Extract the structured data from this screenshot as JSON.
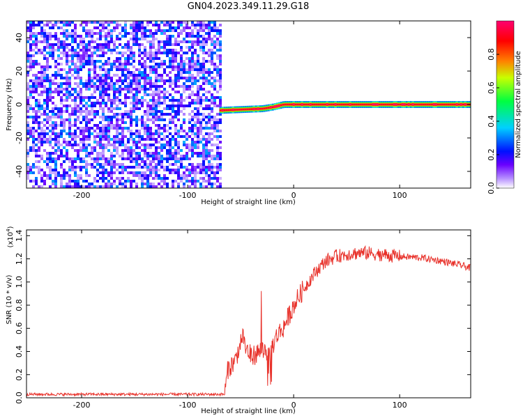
{
  "figure": {
    "title": "GN04.2023.349.11.29.G18"
  },
  "chart_data": [
    {
      "type": "heatmap",
      "title": "GN04.2023.349.11.29.G18",
      "xlabel": "Height of straight line (km)",
      "ylabel": "Frequency (Hz)",
      "xlim": [
        -252,
        167
      ],
      "ylim": [
        -50,
        50
      ],
      "xticks": [
        -200,
        -100,
        0,
        100
      ],
      "xtick_labels": [
        "-200",
        "-100",
        "0",
        "100"
      ],
      "yticks": [
        -40,
        -20,
        0,
        20,
        40
      ],
      "ytick_labels": [
        "-40",
        "-20",
        "0",
        "20",
        "40"
      ],
      "colorbar": {
        "label": "Normalized spectral amplitude",
        "range": [
          0,
          1
        ],
        "ticks": [
          0.0,
          0.2,
          0.4,
          0.6,
          0.8
        ],
        "tick_labels": [
          "0.0",
          "0.2",
          "0.4",
          "0.6",
          "0.8"
        ],
        "colormap": [
          "#ffffff",
          "#6a00ff",
          "#0000ff",
          "#00d0ff",
          "#00ff40",
          "#c8ff00",
          "#ff6000",
          "#ff0000",
          "#ff0080"
        ]
      },
      "regions": [
        {
          "name": "noise",
          "x_range": [
            -252,
            -70
          ],
          "freq_range": [
            -50,
            50
          ],
          "amplitude": [
            0.0,
            0.3
          ]
        },
        {
          "name": "signal",
          "x_range": [
            -70,
            167
          ],
          "freq_path": [
            [
              -70,
              -3.5
            ],
            [
              -50,
              -3
            ],
            [
              -30,
              -2.5
            ],
            [
              -20,
              -1.5
            ],
            [
              -10,
              0
            ],
            [
              0,
              0
            ],
            [
              167,
              0
            ]
          ],
          "peak_amplitude": 1.0
        }
      ],
      "grid": false
    },
    {
      "type": "line",
      "xlabel": "Height of straight line (km)",
      "ylabel": "SNR (10 * v/v)",
      "y_multiplier": "(x10^4)",
      "y_multiplier_base": "(x10",
      "y_multiplier_exp": "4",
      "y_multiplier_close": ")",
      "xlim": [
        -252,
        167
      ],
      "ylim": [
        0,
        1.45
      ],
      "xticks": [
        -200,
        -100,
        0,
        100
      ],
      "xtick_labels": [
        "-200",
        "-100",
        "0",
        "100"
      ],
      "yticks": [
        0.0,
        0.2,
        0.4,
        0.6,
        0.8,
        1.0,
        1.2,
        1.4
      ],
      "ytick_labels": [
        "0.0",
        "0.2",
        "0.4",
        "0.6",
        "0.8",
        "1.0",
        "1.2",
        "1.4"
      ],
      "line_color": "#e8312a",
      "series": [
        {
          "x": [
            -252,
            -240,
            -200,
            -150,
            -100,
            -70,
            -65,
            -62,
            -55,
            -48,
            -45,
            -40,
            -35,
            -30,
            -25,
            -22,
            -20,
            -15,
            -10,
            -5,
            0,
            10,
            20,
            30,
            40,
            50,
            60,
            70,
            80,
            100,
            120,
            140,
            160,
            167
          ],
          "values": [
            0.03,
            0.03,
            0.03,
            0.03,
            0.03,
            0.03,
            0.03,
            0.25,
            0.32,
            0.55,
            0.42,
            0.36,
            0.38,
            0.42,
            0.4,
            0.35,
            0.45,
            0.55,
            0.6,
            0.7,
            0.8,
            0.95,
            1.08,
            1.18,
            1.22,
            1.24,
            1.25,
            1.25,
            1.24,
            1.22,
            1.21,
            1.18,
            1.14,
            1.12
          ]
        }
      ],
      "grid": false
    }
  ]
}
